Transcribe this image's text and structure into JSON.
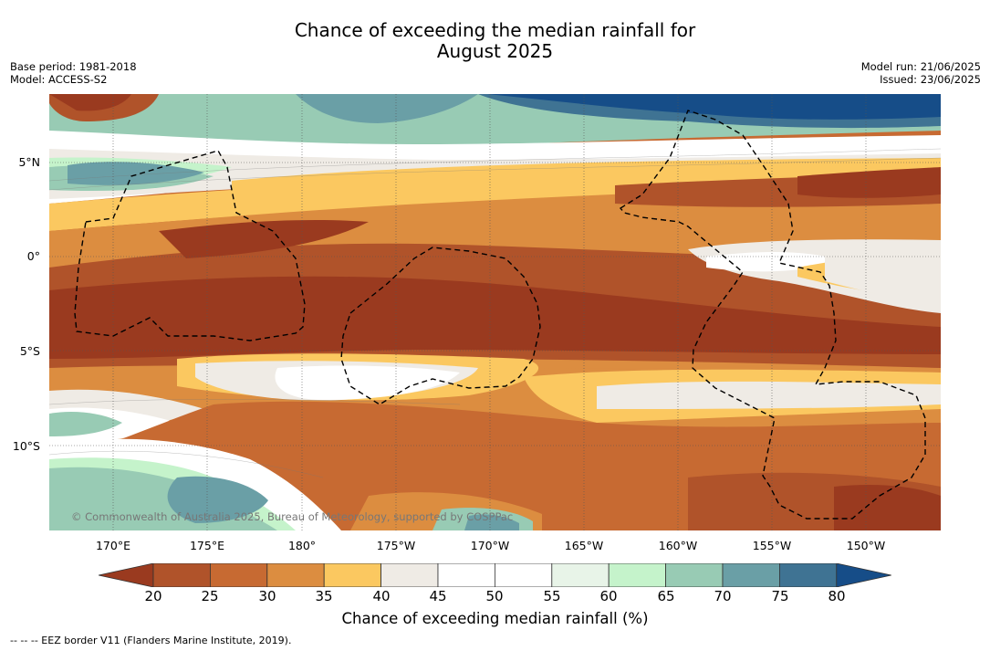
{
  "header": {
    "title_line1": "Chance of exceeding the median rainfall for",
    "title_line2": "August 2025",
    "base_period": "Base period: 1981-2018",
    "model": "Model: ACCESS-S2",
    "model_run": "Model run: 21/06/2025",
    "issued": "Issued: 23/06/2025"
  },
  "map": {
    "lat_labels": [
      "5°N",
      "0°",
      "5°S",
      "10°S"
    ],
    "lon_labels": [
      "170°E",
      "175°E",
      "180°",
      "175°W",
      "170°W",
      "165°W",
      "160°W",
      "155°W",
      "150°W"
    ],
    "copyright": "© Commonwealth of Australia 2025, Bureau of Meteorology, supported by COSPPac",
    "eez_style": "dashed-black"
  },
  "colorbar": {
    "ticks": [
      "20",
      "25",
      "30",
      "35",
      "40",
      "45",
      "50",
      "55",
      "60",
      "65",
      "70",
      "75",
      "80"
    ],
    "colors": [
      "#9a3a1f",
      "#b0532a",
      "#c76a32",
      "#dc8d40",
      "#fbc860",
      "#efebe5",
      "#ffffff",
      "#ffffff",
      "#e8f4e8",
      "#c5f3cb",
      "#98cbb4",
      "#6a9fa6",
      "#3f7393",
      "#164d88"
    ],
    "title": "Chance of exceeding median rainfall (%)"
  },
  "footer": {
    "eez_legend": "--  --  -- EEZ border V11 (Flanders Marine Institute, 2019)."
  }
}
